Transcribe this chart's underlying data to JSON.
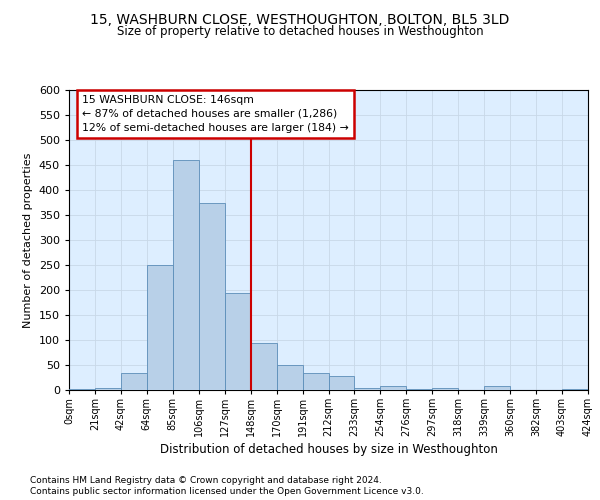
{
  "title": "15, WASHBURN CLOSE, WESTHOUGHTON, BOLTON, BL5 3LD",
  "subtitle": "Size of property relative to detached houses in Westhoughton",
  "xlabel": "Distribution of detached houses by size in Westhoughton",
  "ylabel": "Number of detached properties",
  "categories": [
    "0sqm",
    "21sqm",
    "42sqm",
    "64sqm",
    "85sqm",
    "106sqm",
    "127sqm",
    "148sqm",
    "170sqm",
    "191sqm",
    "212sqm",
    "233sqm",
    "254sqm",
    "276sqm",
    "297sqm",
    "318sqm",
    "339sqm",
    "360sqm",
    "382sqm",
    "403sqm",
    "424sqm"
  ],
  "bar_values": [
    2,
    5,
    35,
    250,
    460,
    375,
    195,
    95,
    50,
    35,
    28,
    5,
    8,
    2,
    5,
    0,
    8,
    0,
    0,
    2
  ],
  "bar_color": "#b8d0e8",
  "bar_edge_color": "#5b8db8",
  "annotation_line1": "15 WASHBURN CLOSE: 146sqm",
  "annotation_line2": "← 87% of detached houses are smaller (1,286)",
  "annotation_line3": "12% of semi-detached houses are larger (184) →",
  "annotation_box_facecolor": "white",
  "annotation_box_edgecolor": "#cc0000",
  "vline_color": "#cc0000",
  "vline_x": 7,
  "ylim": [
    0,
    600
  ],
  "yticks": [
    0,
    50,
    100,
    150,
    200,
    250,
    300,
    350,
    400,
    450,
    500,
    550,
    600
  ],
  "grid_color": "#c8d8e8",
  "plot_bg_color": "#ddeeff",
  "footer1": "Contains HM Land Registry data © Crown copyright and database right 2024.",
  "footer2": "Contains public sector information licensed under the Open Government Licence v3.0."
}
